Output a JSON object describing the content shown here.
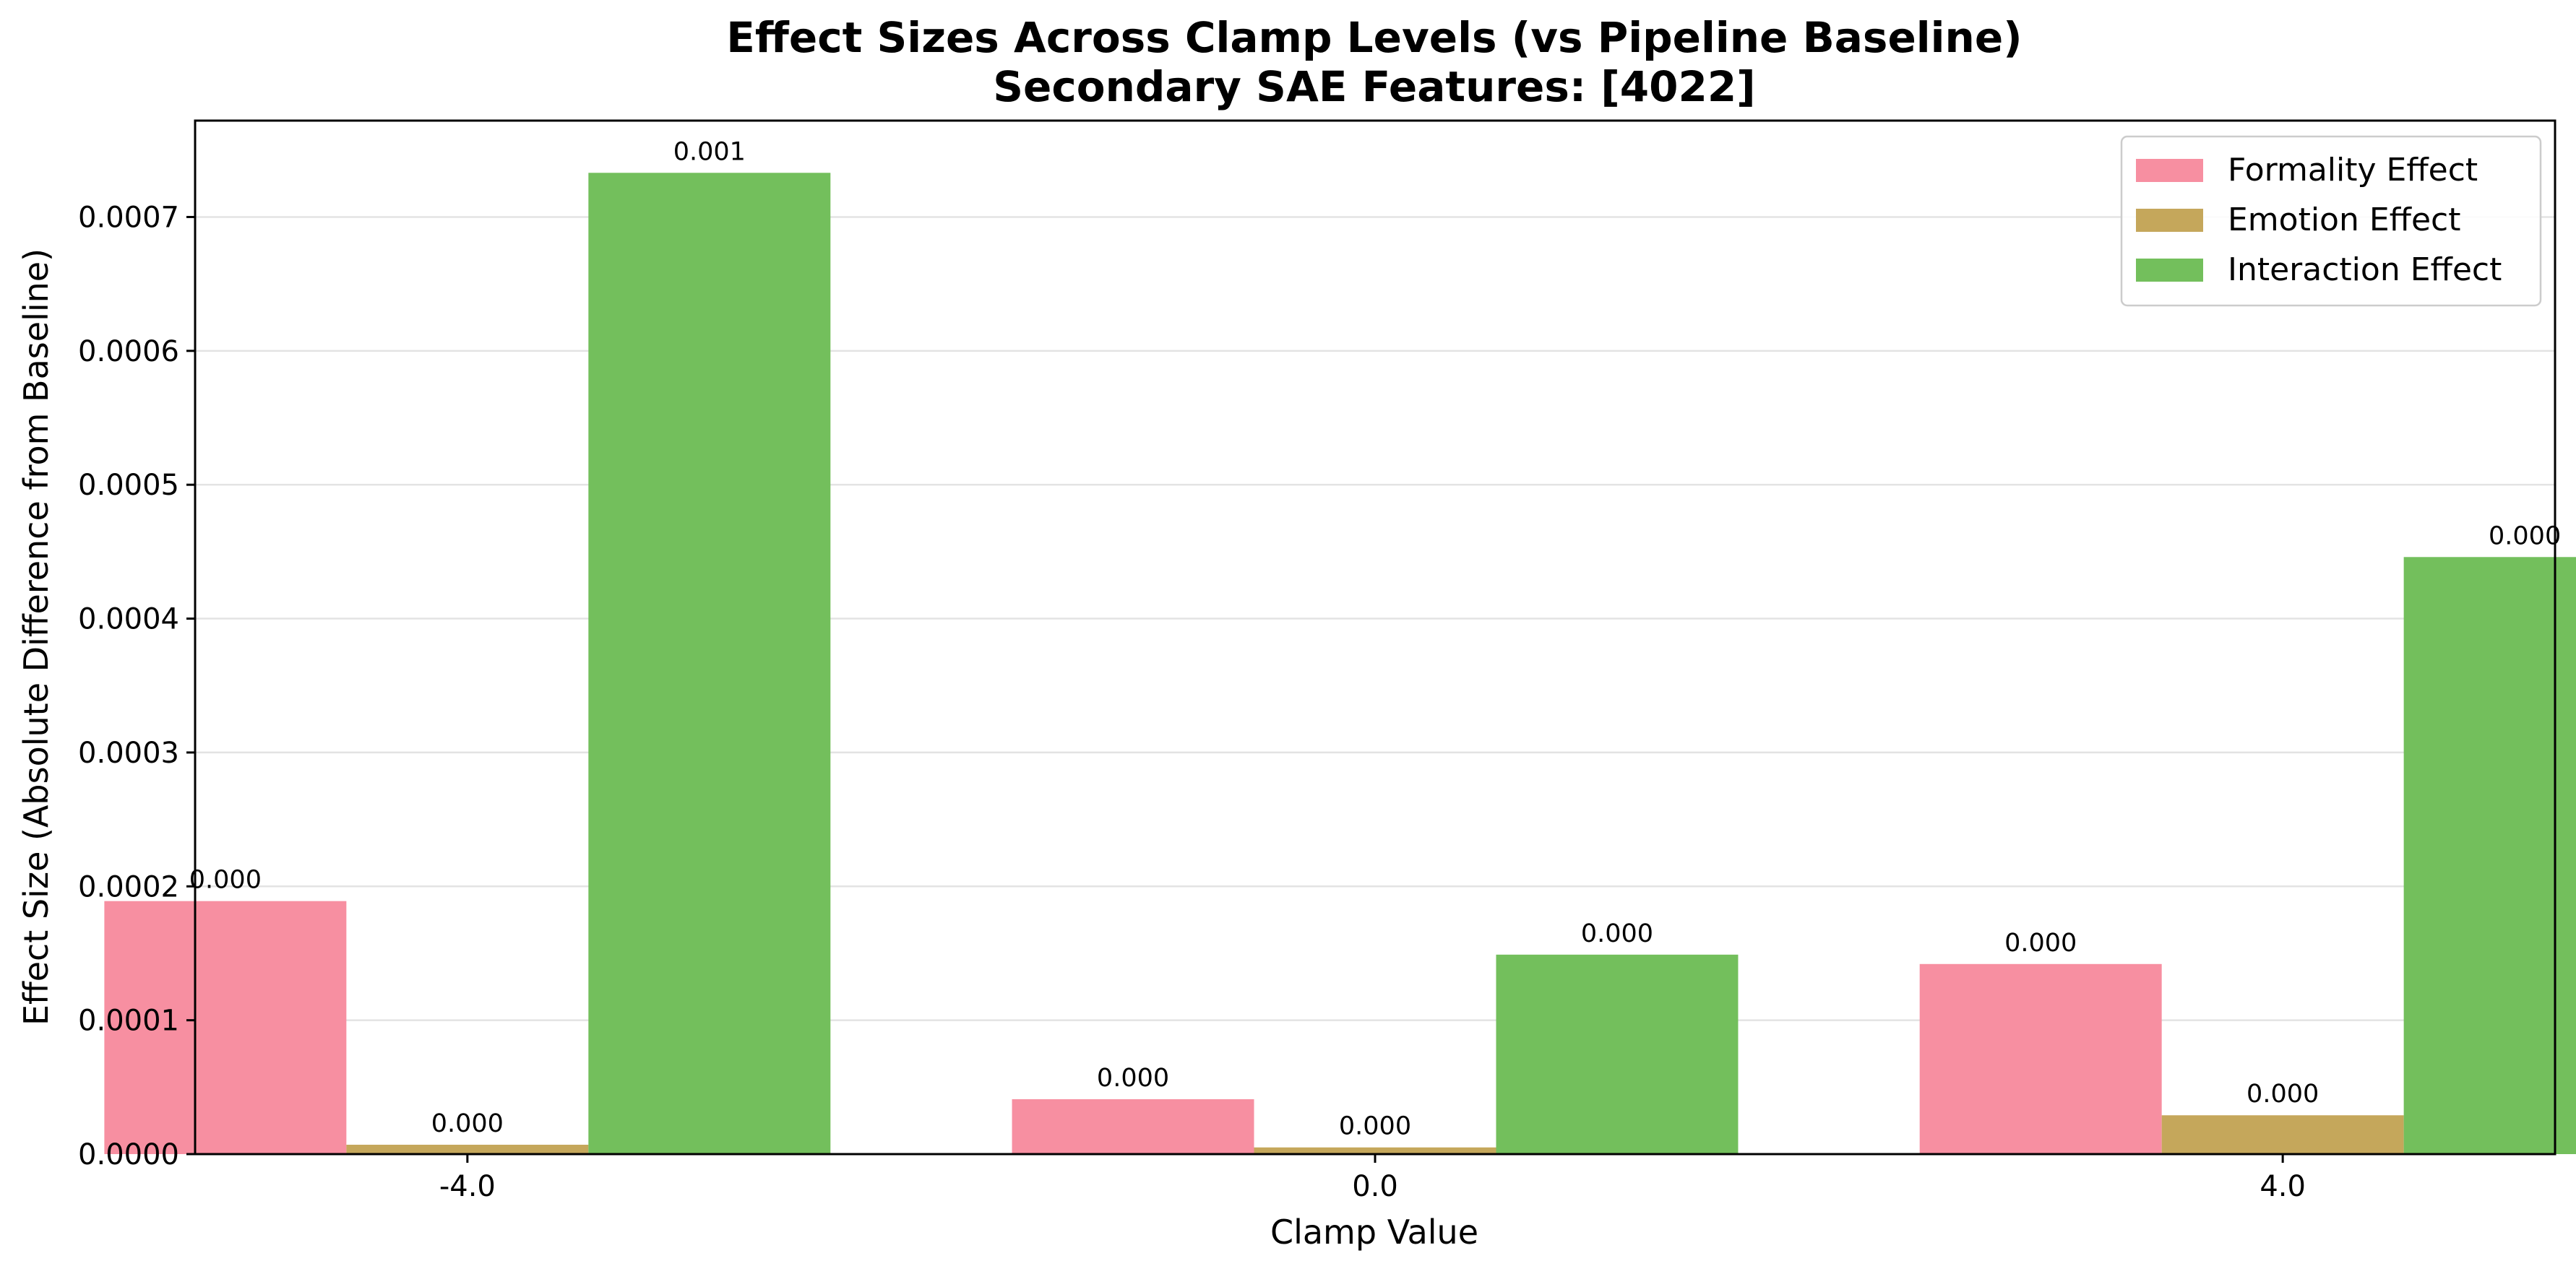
{
  "chart_data": {
    "type": "bar",
    "title": "Effect Sizes Across Clamp Levels (vs Pipeline Baseline)",
    "subtitle": "Secondary SAE Features: [4022]",
    "xlabel": "Clamp Value",
    "ylabel": "Effect Size (Absolute Difference from Baseline)",
    "categories": [
      "-4.0",
      "0.0",
      "4.0"
    ],
    "ylim": [
      0,
      0.000772
    ],
    "yticks": [
      0,
      0.0001,
      0.0002,
      0.0003,
      0.0004,
      0.0005,
      0.0006,
      0.0007
    ],
    "ytick_labels": [
      "0.0000",
      "0.0001",
      "0.0002",
      "0.0003",
      "0.0004",
      "0.0005",
      "0.0006",
      "0.0007"
    ],
    "grid": "horizontal",
    "legend_position": "top-right",
    "series": [
      {
        "name": "Formality Effect",
        "color": "#f78fa1",
        "values": [
          0.000189,
          4.1e-05,
          0.000142
        ],
        "labels": [
          "0.000",
          "0.000",
          "0.000"
        ]
      },
      {
        "name": "Emotion Effect",
        "color": "#c5a75b",
        "values": [
          7e-06,
          5e-06,
          2.9e-05
        ],
        "labels": [
          "0.000",
          "0.000",
          "0.000"
        ]
      },
      {
        "name": "Interaction Effect",
        "color": "#73bf5c",
        "values": [
          0.000733,
          0.000149,
          0.000446
        ],
        "labels": [
          "0.001",
          "0.000",
          "0.000"
        ]
      }
    ]
  }
}
